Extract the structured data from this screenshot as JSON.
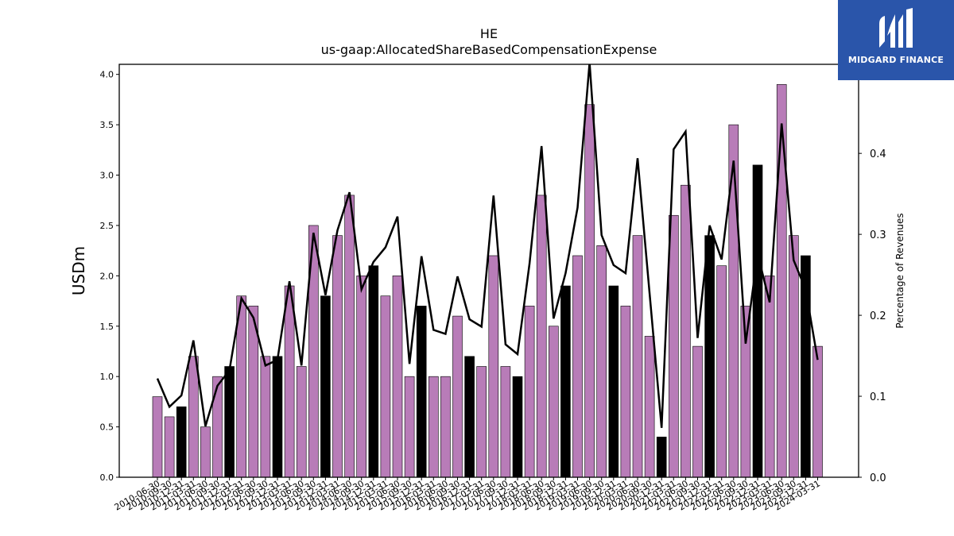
{
  "chart_data": {
    "type": "bar",
    "title": "HE",
    "subtitle": "us-gaap:AllocatedShareBasedCompensationExpense",
    "ylabel": "USDm",
    "y2label": "Percentage of Revenues",
    "ylim": [
      0,
      4.1
    ],
    "y2lim": [
      0,
      0.51
    ],
    "yticks": [
      "0.0",
      "0.5",
      "1.0",
      "1.5",
      "2.0",
      "2.5",
      "3.0",
      "3.5",
      "4.0"
    ],
    "y2ticks": [
      "0.0",
      "0.1",
      "0.2",
      "0.3",
      "0.4"
    ],
    "grid": false,
    "colors": {
      "bar": "#b87cb8",
      "bar_q4": "#000000",
      "line": "#000000"
    },
    "categories": [
      "2010-06-30",
      "2010-09-30",
      "2010-12-31",
      "2011-03-31",
      "2011-06-30",
      "2011-09-30",
      "2011-12-31",
      "2012-03-31",
      "2012-06-30",
      "2012-09-30",
      "2012-12-31",
      "2013-03-31",
      "2013-06-30",
      "2013-09-30",
      "2013-12-31",
      "2014-03-31",
      "2014-06-30",
      "2014-09-30",
      "2014-12-31",
      "2015-03-31",
      "2015-06-30",
      "2015-09-30",
      "2015-12-31",
      "2016-03-31",
      "2016-06-30",
      "2016-09-30",
      "2016-12-31",
      "2017-03-31",
      "2017-06-30",
      "2017-09-30",
      "2017-12-31",
      "2018-03-31",
      "2018-06-30",
      "2018-09-30",
      "2018-12-31",
      "2019-03-31",
      "2019-06-30",
      "2019-09-30",
      "2019-12-31",
      "2020-03-31",
      "2020-06-30",
      "2020-09-30",
      "2020-12-31",
      "2021-03-31",
      "2021-06-30",
      "2021-09-30",
      "2021-12-31",
      "2022-03-31",
      "2022-06-30",
      "2022-09-30",
      "2022-12-31",
      "2023-03-31",
      "2023-06-30",
      "2023-09-30",
      "2023-12-31",
      "2024-03-31"
    ],
    "series": [
      {
        "values": [
          0.8,
          0.6,
          0.7,
          1.2,
          0.5,
          1.0,
          1.1,
          1.8,
          1.7,
          1.2,
          1.2,
          1.9,
          1.1,
          2.5,
          1.8,
          2.4,
          2.8,
          2.0,
          2.1,
          1.8,
          2.0,
          1.0,
          1.7,
          1.0,
          1.0,
          1.6,
          1.2,
          1.1,
          2.2,
          1.1,
          1.0,
          1.7,
          2.8,
          1.5,
          1.9,
          2.2,
          3.7,
          2.3,
          1.9,
          1.7,
          2.4,
          1.4,
          0.4,
          2.6,
          2.9,
          1.3,
          2.4,
          2.1,
          3.5,
          1.7,
          3.1,
          2.0,
          3.9,
          2.4,
          2.2,
          1.3
        ]
      },
      {
        "axis": "right",
        "values": [
          0.122,
          0.087,
          0.101,
          0.169,
          0.063,
          0.113,
          0.132,
          0.221,
          0.197,
          0.138,
          0.145,
          0.242,
          0.138,
          0.302,
          0.225,
          0.305,
          0.352,
          0.232,
          0.266,
          0.284,
          0.322,
          0.14,
          0.273,
          0.182,
          0.177,
          0.248,
          0.195,
          0.186,
          0.348,
          0.164,
          0.152,
          0.264,
          0.409,
          0.196,
          0.252,
          0.333,
          0.512,
          0.299,
          0.262,
          0.252,
          0.394,
          0.227,
          0.061,
          0.405,
          0.427,
          0.172,
          0.311,
          0.269,
          0.391,
          0.165,
          0.276,
          0.216,
          0.437,
          0.268,
          0.232,
          0.145
        ]
      }
    ]
  },
  "logo": {
    "text": "MIDGARD FINANCE"
  }
}
